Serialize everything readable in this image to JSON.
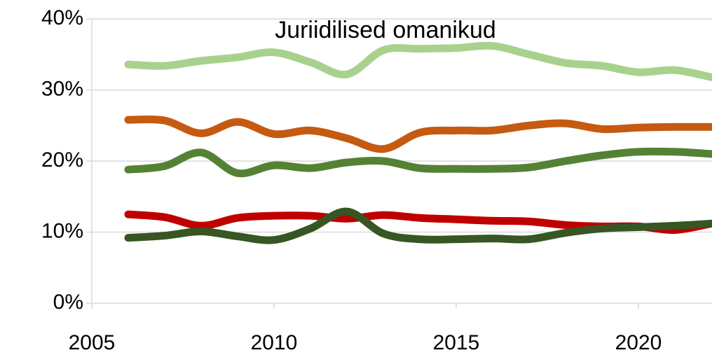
{
  "chart_data": {
    "type": "line",
    "title": "Juriidilised omanikud",
    "x": [
      2006,
      2007,
      2008,
      2009,
      2010,
      2011,
      2012,
      2013,
      2014,
      2015,
      2016,
      2017,
      2018,
      2019,
      2020,
      2021,
      2022
    ],
    "series": [
      {
        "color": "#a9d18e",
        "values": [
          33.6,
          33.4,
          34.1,
          34.6,
          35.3,
          33.9,
          32.2,
          35.6,
          35.8,
          35.9,
          36.2,
          35.0,
          33.8,
          33.4,
          32.5,
          32.8,
          31.8
        ]
      },
      {
        "color": "#c55a11",
        "values": [
          25.8,
          25.7,
          23.9,
          25.5,
          23.8,
          24.3,
          23.2,
          21.7,
          24.0,
          24.3,
          24.3,
          25.0,
          25.3,
          24.5,
          24.7,
          24.8,
          24.8
        ]
      },
      {
        "color": "#548235",
        "values": [
          18.8,
          19.3,
          21.2,
          18.3,
          19.4,
          19.0,
          19.8,
          20.0,
          19.0,
          18.9,
          18.9,
          19.1,
          20.0,
          20.8,
          21.3,
          21.3,
          21.0
        ]
      },
      {
        "color": "#c00000",
        "values": [
          12.5,
          12.1,
          10.9,
          12.0,
          12.3,
          12.3,
          11.9,
          12.4,
          12.0,
          11.8,
          11.6,
          11.5,
          11.0,
          10.8,
          10.8,
          10.3,
          11.2
        ]
      },
      {
        "color": "#375623",
        "values": [
          9.2,
          9.5,
          10.1,
          9.4,
          8.9,
          10.5,
          12.9,
          9.8,
          9.0,
          9.0,
          9.1,
          9.0,
          9.9,
          10.5,
          10.7,
          10.9,
          11.2
        ]
      }
    ],
    "xlim": [
      2005,
      2022
    ],
    "xticks": [
      2005,
      2010,
      2015,
      2020
    ],
    "ylim": [
      0,
      40
    ],
    "yticks": [
      {
        "value": 0,
        "label": "0%"
      },
      {
        "value": 10,
        "label": "10%"
      },
      {
        "value": 20,
        "label": "20%"
      },
      {
        "value": 30,
        "label": "30%"
      },
      {
        "value": 40,
        "label": "40%"
      }
    ],
    "grid": true
  }
}
